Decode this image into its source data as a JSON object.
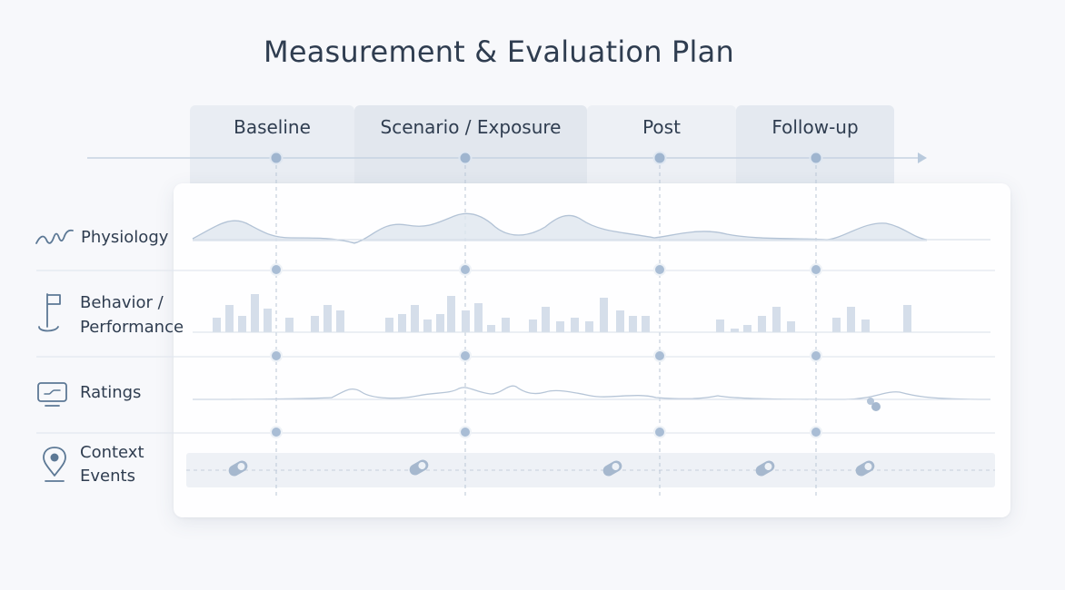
{
  "title": "Measurement & Evaluation Plan",
  "phases": [
    {
      "label": "Baseline"
    },
    {
      "label": "Scenario / Exposure"
    },
    {
      "label": "Post"
    },
    {
      "label": "Follow-up"
    }
  ],
  "rows": [
    {
      "label": "Physiology",
      "icon": "waveform-icon"
    },
    {
      "label": "Behavior / Performance",
      "label_lines": [
        "Behavior /",
        "Performance"
      ],
      "icon": "flag-icon"
    },
    {
      "label": "Ratings",
      "icon": "monitor-icon"
    },
    {
      "label": "Context Events",
      "label_lines": [
        "Context",
        "Events"
      ],
      "icon": "location-pin-icon"
    }
  ],
  "colors": {
    "accent": "#8aa6c8",
    "line": "#c9d4e2",
    "header_bg": "#e8ecf2",
    "text": "#2f3d50"
  }
}
